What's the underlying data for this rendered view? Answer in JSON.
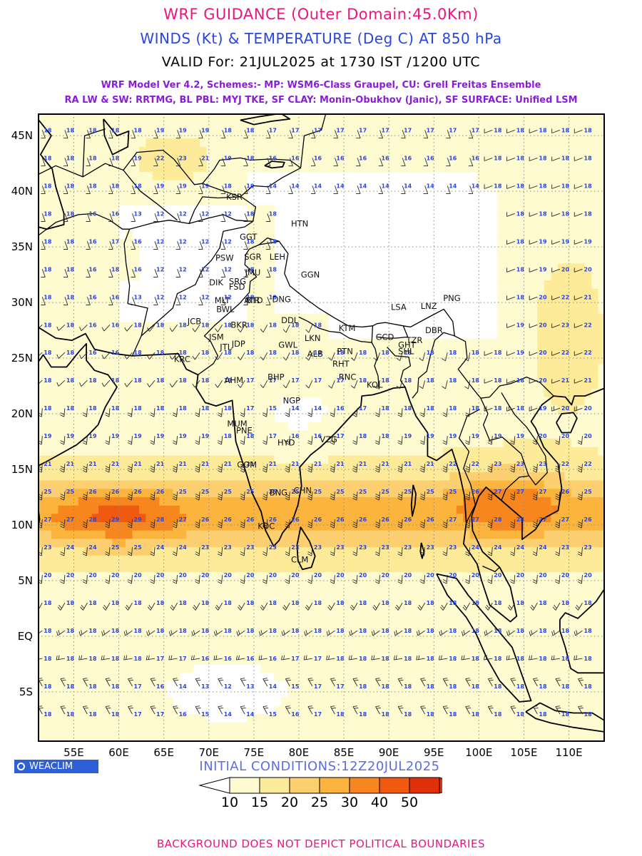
{
  "header": {
    "title": "WRF GUIDANCE (Outer Domain:45.0Km)",
    "subtitle": "WINDS (Kt) & TEMPERATURE (Deg C) AT 850 hPa",
    "valid": "VALID For: 21JUL2025 at 1730 IST /1200 UTC",
    "scheme_line1": "WRF Model Ver 4.2, Schemes:- MP: WSM6-Class Graupel, CU: Grell Freitas Ensemble",
    "scheme_line2": "RA LW & SW: RRTMG, BL PBL: MYJ TKE, SF CLAY: Monin-Obukhov (Janic), SF SURFACE: Unified LSM"
  },
  "map": {
    "lon_range": [
      51,
      114
    ],
    "lat_range": [
      -9.5,
      47
    ],
    "lat_labels": [
      "45N",
      "40N",
      "35N",
      "30N",
      "25N",
      "20N",
      "15N",
      "10N",
      "5N",
      "EQ",
      "5S"
    ],
    "lon_labels": [
      "55E",
      "60E",
      "65E",
      "70E",
      "75E",
      "80E",
      "85E",
      "90E",
      "95E",
      "100E",
      "105E",
      "110E"
    ],
    "stations": [
      {
        "name": "KSR",
        "lon": 72.8,
        "lat": 39.5
      },
      {
        "name": "HTN",
        "lon": 80.0,
        "lat": 37.1
      },
      {
        "name": "GGT",
        "lon": 74.3,
        "lat": 35.9
      },
      {
        "name": "PSW",
        "lon": 71.6,
        "lat": 34.0
      },
      {
        "name": "SGR",
        "lon": 74.8,
        "lat": 34.1
      },
      {
        "name": "LEH",
        "lon": 77.6,
        "lat": 34.1
      },
      {
        "name": "JMU",
        "lon": 74.9,
        "lat": 32.7
      },
      {
        "name": "GGN",
        "lon": 81.1,
        "lat": 32.5
      },
      {
        "name": "DIK",
        "lon": 70.9,
        "lat": 31.8
      },
      {
        "name": "SRG",
        "lon": 73.1,
        "lat": 31.9
      },
      {
        "name": "FSD",
        "lon": 73.1,
        "lat": 31.4
      },
      {
        "name": "MLT",
        "lon": 71.5,
        "lat": 30.2
      },
      {
        "name": "ATR",
        "lon": 74.8,
        "lat": 30.2
      },
      {
        "name": "BTD",
        "lon": 75.0,
        "lat": 30.2
      },
      {
        "name": "DNG",
        "lon": 77.9,
        "lat": 30.3
      },
      {
        "name": "BWL",
        "lon": 71.7,
        "lat": 29.4
      },
      {
        "name": "PNG",
        "lon": 96.9,
        "lat": 30.4
      },
      {
        "name": "LSA",
        "lon": 91.1,
        "lat": 29.6
      },
      {
        "name": "LNZ",
        "lon": 94.4,
        "lat": 29.7
      },
      {
        "name": "JCB",
        "lon": 68.5,
        "lat": 28.3
      },
      {
        "name": "DDL",
        "lon": 78.9,
        "lat": 28.4
      },
      {
        "name": "BKR",
        "lon": 73.3,
        "lat": 28.0
      },
      {
        "name": "JSM",
        "lon": 70.9,
        "lat": 26.9
      },
      {
        "name": "KTM",
        "lon": 85.3,
        "lat": 27.7
      },
      {
        "name": "LKN",
        "lon": 81.5,
        "lat": 26.8
      },
      {
        "name": "GWL",
        "lon": 78.6,
        "lat": 26.2
      },
      {
        "name": "JDP",
        "lon": 73.4,
        "lat": 26.3
      },
      {
        "name": "JTL",
        "lon": 72.1,
        "lat": 26.0
      },
      {
        "name": "GCD",
        "lon": 89.4,
        "lat": 26.9
      },
      {
        "name": "TZR",
        "lon": 92.8,
        "lat": 26.6
      },
      {
        "name": "GHT",
        "lon": 91.9,
        "lat": 26.2
      },
      {
        "name": "DBR",
        "lon": 94.9,
        "lat": 27.5
      },
      {
        "name": "SHL",
        "lon": 91.9,
        "lat": 25.6
      },
      {
        "name": "PTN",
        "lon": 85.1,
        "lat": 25.6
      },
      {
        "name": "ALB",
        "lon": 81.8,
        "lat": 25.4
      },
      {
        "name": "RHT",
        "lon": 84.6,
        "lat": 24.5
      },
      {
        "name": "KRC",
        "lon": 67.0,
        "lat": 24.9
      },
      {
        "name": "RNC",
        "lon": 85.3,
        "lat": 23.3
      },
      {
        "name": "BHP",
        "lon": 77.4,
        "lat": 23.3
      },
      {
        "name": "AHM",
        "lon": 72.6,
        "lat": 23.0
      },
      {
        "name": "KOL",
        "lon": 88.4,
        "lat": 22.6
      },
      {
        "name": "NGP",
        "lon": 79.1,
        "lat": 21.2
      },
      {
        "name": "MUM",
        "lon": 72.9,
        "lat": 19.1
      },
      {
        "name": "PNE",
        "lon": 73.9,
        "lat": 18.5
      },
      {
        "name": "VZG",
        "lon": 83.2,
        "lat": 17.7
      },
      {
        "name": "HYD",
        "lon": 78.5,
        "lat": 17.4
      },
      {
        "name": "GOM",
        "lon": 74.0,
        "lat": 15.4
      },
      {
        "name": "CHN",
        "lon": 80.3,
        "lat": 13.1
      },
      {
        "name": "BNG",
        "lon": 77.6,
        "lat": 12.9
      },
      {
        "name": "KOC",
        "lon": 76.3,
        "lat": 9.9
      },
      {
        "name": "CLM",
        "lon": 80.0,
        "lat": 6.9
      }
    ]
  },
  "legend": {
    "levels": [
      "10",
      "15",
      "20",
      "25",
      "30",
      "40",
      "50"
    ],
    "colors": [
      "#fefbd0",
      "#fdeb9a",
      "#fcd070",
      "#fbb53e",
      "#f7861e",
      "#ef5a10",
      "#e03008"
    ]
  },
  "palette": {
    "background": "#ffffff",
    "title_pink": "#e8167f",
    "title_blue": "#2a46e0",
    "scheme_purple": "#8a1ed8",
    "wind_barb": "#2a2a2a",
    "temp_label": "#2a46e0",
    "coast": "#000000",
    "grid": "#8c8c8c"
  },
  "logo": {
    "text": "WEACLIM",
    "icon": "circle-logo-icon"
  },
  "init": "INITIAL CONDITIONS:12Z20JUL2025",
  "footer": "BACKGROUND DOES NOT DEPICT POLITICAL BOUNDARIES"
}
